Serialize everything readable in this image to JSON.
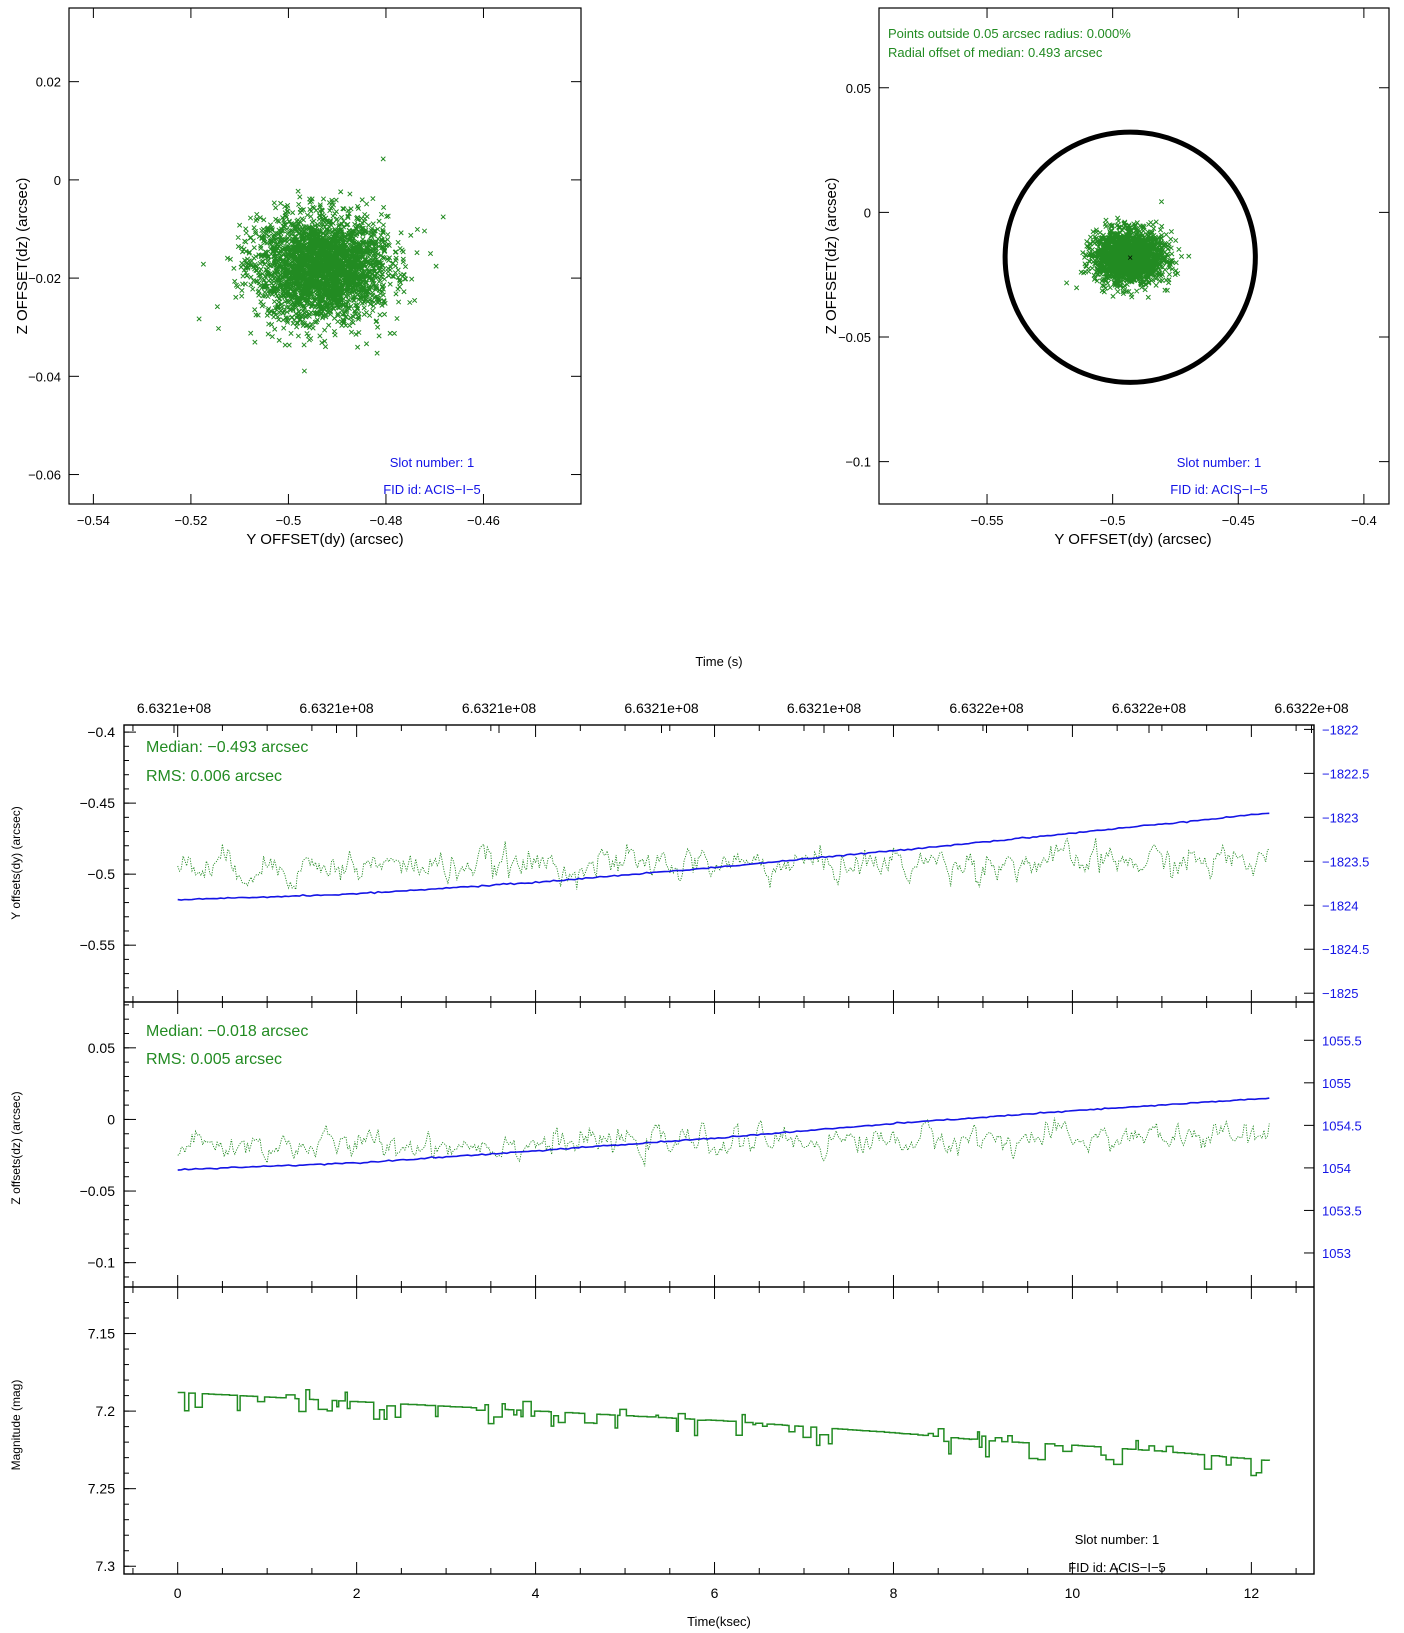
{
  "colors": {
    "green": "#228B22",
    "blue": "#1414E6",
    "black": "#000000"
  },
  "chart_data": [
    {
      "type": "scatter",
      "xlabel": "Y OFFSET(dy) (arcsec)",
      "ylabel": "Z OFFSET(dz) (arcsec)",
      "xlim": [
        -0.545,
        -0.44
      ],
      "ylim": [
        -0.066,
        0.035
      ],
      "xticks": [
        -0.54,
        -0.52,
        -0.5,
        -0.48,
        -0.46
      ],
      "xtick_labels": [
        "−0.54",
        "−0.52",
        "−0.5",
        "−0.48",
        "−0.46"
      ],
      "yticks": [
        0.02,
        0,
        -0.02,
        -0.04,
        -0.06
      ],
      "ytick_labels": [
        "0.02",
        "0",
        "−0.02",
        "−0.04",
        "−0.06"
      ],
      "cloud": {
        "center": [
          -0.493,
          -0.018
        ],
        "spread": [
          0.0065,
          0.0052
        ],
        "n": 3000
      },
      "annotations": [
        "Slot number: 1",
        "FID id: ACIS−I−5"
      ]
    },
    {
      "type": "scatter",
      "xlabel": "Y OFFSET(dy) (arcsec)",
      "ylabel": "Z OFFSET(dz) (arcsec)",
      "xlim": [
        -0.593,
        -0.39
      ],
      "ylim": [
        -0.117,
        0.082
      ],
      "xticks": [
        -0.55,
        -0.5,
        -0.45,
        -0.4
      ],
      "xtick_labels": [
        "−0.55",
        "−0.5",
        "−0.45",
        "−0.4"
      ],
      "yticks": [
        0.05,
        0,
        -0.05,
        -0.1
      ],
      "ytick_labels": [
        "0.05",
        "0",
        "−0.05",
        "−0.1"
      ],
      "circle": {
        "center": [
          -0.493,
          -0.018
        ],
        "radius": 0.05
      },
      "cloud": {
        "center": [
          -0.493,
          -0.018
        ],
        "spread": [
          0.0065,
          0.0052
        ],
        "n": 3000
      },
      "notes": [
        "Points outside 0.05 arcsec radius: 0.000%",
        "Radial offset of median: 0.493 arcsec"
      ],
      "annotations": [
        "Slot number: 1",
        "FID id: ACIS−I−5"
      ]
    },
    {
      "type": "line",
      "top_axis_label": "Time (s)",
      "top_tick_labels": [
        "6.6321e+08",
        "6.6321e+08",
        "6.6321e+08",
        "6.6321e+08",
        "6.6321e+08",
        "6.6322e+08",
        "6.6322e+08",
        "6.6322e+08"
      ],
      "xlim": [
        -0.6,
        12.7
      ],
      "panels": [
        {
          "ylabel": "Y offsets(dy) (arcsec)",
          "ylim": [
            -0.59,
            -0.395
          ],
          "yticks": [
            -0.4,
            -0.45,
            -0.5,
            -0.55
          ],
          "ytick_labels": [
            "−0.4",
            "−0.45",
            "−0.5",
            "−0.55"
          ],
          "right_ylim": [
            -1825.1,
            -1821.95
          ],
          "right_yticks": [
            -1822,
            -1822.5,
            -1823,
            -1823.5,
            -1824,
            -1824.5,
            -1825
          ],
          "right_ytick_labels": [
            "−1822",
            "−1822.5",
            "−1823",
            "−1823.5",
            "−1824",
            "−1824.5",
            "−1825"
          ],
          "series_noise": {
            "start": -0.495,
            "end": -0.491,
            "amp": 0.006
          },
          "series_trend": {
            "x": [
              0,
              2,
              4,
              6,
              8,
              10,
              12.2
            ],
            "y": [
              -1823.94,
              -1823.87,
              -1823.74,
              -1823.57,
              -1823.38,
              -1823.18,
              -1822.95
            ]
          },
          "notes": [
            "Median: −0.493 arcsec",
            "RMS: 0.006 arcsec"
          ]
        },
        {
          "ylabel": "Z offsets(dz) (arcsec)",
          "ylim": [
            -0.117,
            0.082
          ],
          "yticks": [
            0.05,
            0,
            -0.05,
            -0.1
          ],
          "ytick_labels": [
            "0.05",
            "0",
            "−0.05",
            "−0.1"
          ],
          "right_ylim": [
            1052.6,
            1055.95
          ],
          "right_yticks": [
            1055.5,
            1055,
            1054.5,
            1054,
            1053.5,
            1053
          ],
          "right_ytick_labels": [
            "1055.5",
            "1055",
            "1054.5",
            "1054",
            "1053.5",
            "1053"
          ],
          "series_noise": {
            "start": -0.019,
            "end": -0.012,
            "amp": 0.005
          },
          "series_trend": {
            "x": [
              0,
              2,
              4,
              6,
              8,
              10,
              12.2
            ],
            "y": [
              1053.98,
              1054.06,
              1054.2,
              1054.35,
              1054.52,
              1054.67,
              1054.82
            ]
          },
          "notes": [
            "Median: −0.018 arcsec",
            "RMS: 0.005 arcsec"
          ]
        },
        {
          "ylabel": "Magnitude (mag)",
          "ylim": [
            7.305,
            7.12
          ],
          "yticks": [
            7.15,
            7.2,
            7.25,
            7.3
          ],
          "ytick_labels": [
            "7.15",
            "7.2",
            "7.25",
            "7.3"
          ],
          "series_mag": {
            "x": [
              0,
              1,
              2,
              3,
              4,
              5,
              6,
              7,
              8,
              9,
              10,
              11,
              12.2
            ],
            "y": [
              7.188,
              7.191,
              7.194,
              7.197,
              7.2,
              7.203,
              7.206,
              7.21,
              7.214,
              7.219,
              7.222,
              7.226,
              7.232
            ]
          },
          "annotations": [
            "Slot number: 1",
            "FID id: ACIS−I−5"
          ]
        }
      ],
      "xticks": [
        0,
        2,
        4,
        6,
        8,
        10,
        12
      ],
      "xtick_labels": [
        "0",
        "2",
        "4",
        "6",
        "8",
        "10",
        "12"
      ],
      "xlabel": "Time(ksec)"
    }
  ]
}
